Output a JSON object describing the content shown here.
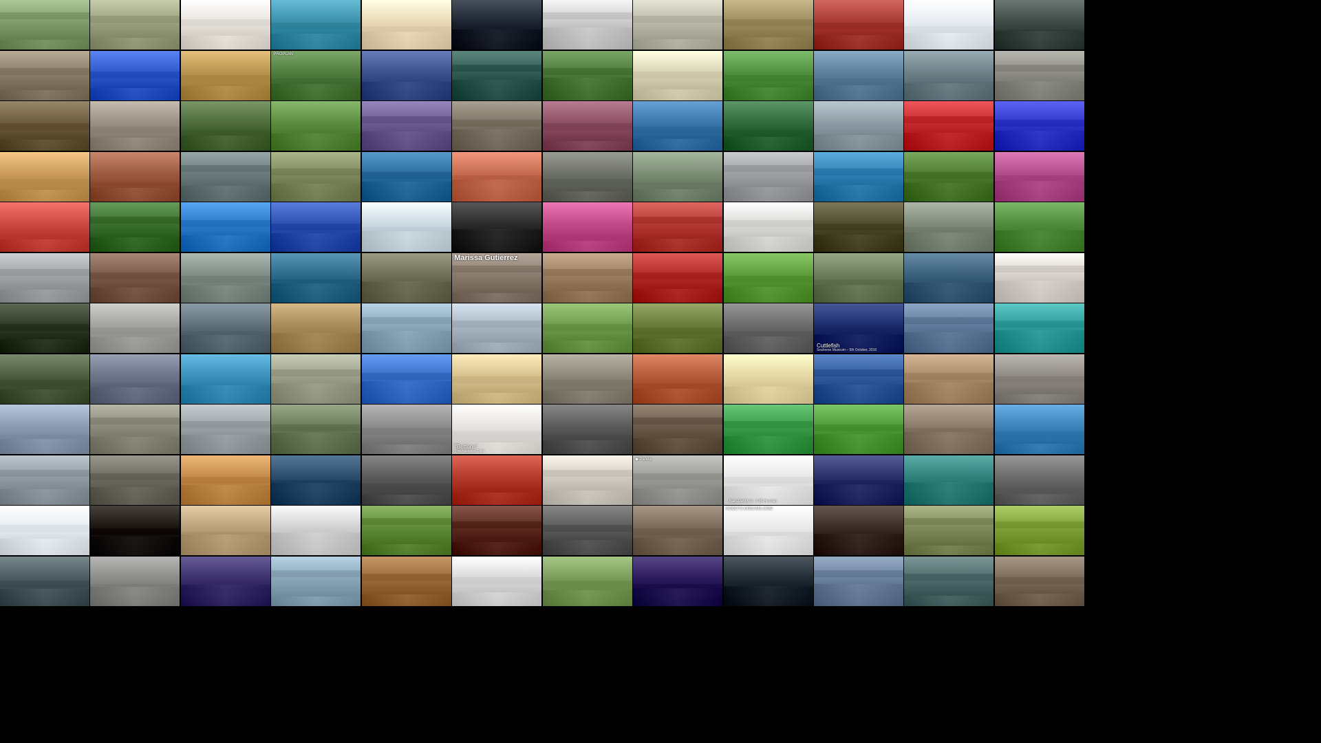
{
  "grid": {
    "columns": 12,
    "rows": 12
  },
  "palette": [
    [
      "#7f9a6b",
      "#9aa07d",
      "#e8e4dc",
      "#3a8fa8",
      "#e9d8b6",
      "#1b2430",
      "#c9c9c9",
      "#b9b8a9",
      "#9a8c5d",
      "#a63a33",
      "#e7ecf3",
      "#3e4a45"
    ],
    [
      "#8a7e6a",
      "#2e58c9",
      "#b7934e",
      "#4f7b3f",
      "#3b4f8c",
      "#2f5a52",
      "#4d7a3b",
      "#d8d2b5",
      "#4f8f3f",
      "#5d7f9a",
      "#6d7f86",
      "#8b8b84"
    ],
    [
      "#6b5a3d",
      "#9a8f83",
      "#4d6a3a",
      "#5b8b3e",
      "#6a5a8f",
      "#7d7466",
      "#8c4f64",
      "#3a74a8",
      "#2f6a3a",
      "#8e9aa3",
      "#c32a2f",
      "#2f37c8"
    ],
    [
      "#c99a5a",
      "#9b5a3f",
      "#6a7a7a",
      "#7e8a5e",
      "#2a6c9c",
      "#c36a4f",
      "#6c6f66",
      "#7a8b74",
      "#9c9ea2",
      "#2f7fb2",
      "#4e7b32",
      "#b04c8a"
    ],
    [
      "#c8483f",
      "#3a6e2e",
      "#2a7ac7",
      "#2c4fb0",
      "#cbd9e2",
      "#2a2a2a",
      "#c04a88",
      "#b33a34",
      "#d9d9d6",
      "#4f4a2e",
      "#7f8a7a",
      "#4f8b3a"
    ],
    [
      "#9fa3a3",
      "#7a5a4a",
      "#7f8d86",
      "#2d6a8a",
      "#6d6f56",
      "#897a6e",
      "#9b7d5f",
      "#b22a2a",
      "#5c9a3a",
      "#6a7a5a",
      "#3a5f7a",
      "#d6d0cc"
    ],
    [
      "#2f3b26",
      "#a2a29f",
      "#5f6f7a",
      "#a88b5a",
      "#8aa6b9",
      "#aab7c3",
      "#6f9b4f",
      "#6a7a3a",
      "#6a6a6a",
      "#1a2a6a",
      "#5f7a9a",
      "#2f9c9a"
    ],
    [
      "#4b5c3f",
      "#6a7486",
      "#3a8fb8",
      "#9a9f8a",
      "#3a6fc7",
      "#d6c08e",
      "#8a8679",
      "#b35a3a",
      "#e4d6a2",
      "#2f5a9c",
      "#a88a6a",
      "#8f8a85"
    ],
    [
      "#8a9bb0",
      "#8a8a7a",
      "#9aa0a4",
      "#6a7a5a",
      "#8a8a8a",
      "#e6e2de",
      "#5a5a5a",
      "#6a5a4a",
      "#3a9b4a",
      "#4f9a3a",
      "#8a7a6a",
      "#3a82b8"
    ],
    [
      "#8f9aa3",
      "#6d6a5f",
      "#c18a4a",
      "#2a4a6a",
      "#5a5a5a",
      "#b33a2a",
      "#cfcac0",
      "#9a9a96",
      "#e8e8e8",
      "#2a2f6a",
      "#2f7f7a",
      "#6a6a6a"
    ],
    [
      "#e6ecf2",
      "#1a1410",
      "#b8a07a",
      "#cfcfcf",
      "#5f8a3a",
      "#5a2a1f",
      "#5a5a5a",
      "#7a6a5a",
      "#e8e8e8",
      "#3a2a24",
      "#7f8a5a",
      "#7f9f3a"
    ],
    [
      "#4a5a5e",
      "#8a8a88",
      "#3a2f6a",
      "#8aa4b8",
      "#9a6a3a",
      "#d8d8d8",
      "#7a9a5a",
      "#2a1a5a",
      "#1f2a33",
      "#6a7f9a",
      "#4f6a6a",
      "#7a6a5a"
    ]
  ],
  "captions": {
    "tile_5_5": {
      "text": "Marissa Gutierrez",
      "style": "cap-name"
    },
    "tile_6_9": {
      "text": "Cuttlefish",
      "style": "cap-small"
    },
    "tile_6_9_sub": {
      "text": "Seahorse Museum – 5th October, 2016",
      "style": "cap-sub"
    },
    "tile_8_5": {
      "text": "\"Buttons\"",
      "style": "cap-small"
    },
    "tile_8_5_sub": {
      "text": "The Pussycat Dolls",
      "style": "cap-sub"
    },
    "tile_10_8": {
      "text": "ROBOTS DREAMS.COM",
      "style": "cap-top"
    },
    "tile_9_8_score": {
      "text": "Nao-Devils   0 : 0   B-Human",
      "style": "cap-score"
    },
    "tile_9_7": {
      "text": "◆ Panda",
      "style": "cap-top"
    },
    "tile_1_3": {
      "text": "PROPLAN",
      "style": "cap-top"
    },
    "tile_7_11": {
      "text": "",
      "style": "cap-right"
    }
  }
}
